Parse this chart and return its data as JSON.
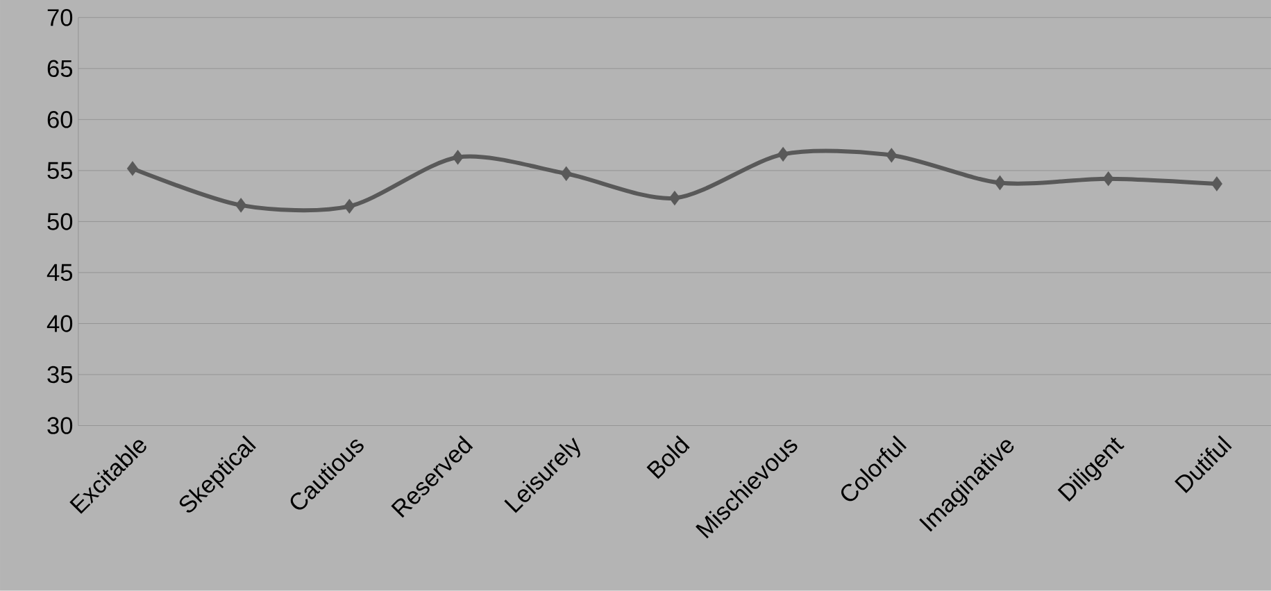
{
  "chart_data": {
    "type": "line",
    "categories": [
      "Excitable",
      "Skeptical",
      "Cautious",
      "Reserved",
      "Leisurely",
      "Bold",
      "Mischievous",
      "Colorful",
      "Imaginative",
      "Diligent",
      "Dutiful"
    ],
    "values": [
      55.2,
      51.6,
      51.5,
      56.3,
      54.7,
      52.3,
      56.6,
      56.5,
      53.8,
      54.2,
      53.7
    ],
    "color": "#595959",
    "marker": "diamond",
    "grid": "y",
    "ylim": [
      30,
      70
    ],
    "yticks": [
      30,
      35,
      40,
      45,
      50,
      55,
      60,
      65,
      70
    ]
  }
}
